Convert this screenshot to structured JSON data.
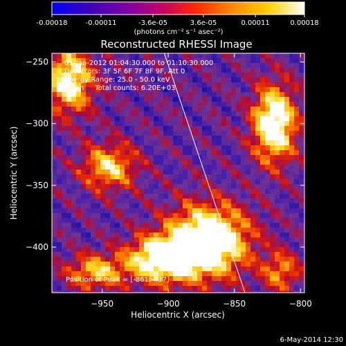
{
  "colorbar": {
    "tick_labels": [
      "-0.00018",
      "-0.00011",
      "-3.6e-05",
      "3.6e-05",
      "0.00011",
      "0.00018"
    ],
    "tick_values": [
      -0.00018,
      -0.00011,
      -3.6e-05,
      3.6e-05,
      0.00011,
      0.00018
    ],
    "range": [
      -0.00018,
      0.00018
    ],
    "units_label": "(photons cm⁻² s⁻¹ asec⁻²)",
    "gradient_colors": [
      "#0000ff",
      "#3a00b8",
      "#7a00a8",
      "#c0006a",
      "#ff2a00",
      "#ff8a00",
      "#ffd000",
      "#ffffff"
    ]
  },
  "chart_data": {
    "type": "heatmap",
    "title": "Reconstructed RHESSI Image",
    "xlabel": "Heliocentric X (arcsec)",
    "ylabel": "Heliocentric Y (arcsec)",
    "xlim": [
      -988,
      -797
    ],
    "ylim": [
      -437,
      -243
    ],
    "x_ticks": [
      -950,
      -900,
      -850,
      -800
    ],
    "x_tick_labels": [
      "−950",
      "−900",
      "−850",
      "−800"
    ],
    "y_ticks": [
      -250,
      -300,
      -350,
      -400
    ],
    "y_tick_labels": [
      "−250",
      "−300",
      "−350",
      "−400"
    ],
    "info_lines": [
      "01-Jan-2012 01:04:30.000 to 01:10:30.000",
      "Detectors: 3F 5F 6F 7F 8F 9F, Att 0",
      "Energy Range: 25.0 - 50.0 keV",
      "Clean     Total counts: 6.20E+03"
    ],
    "peak_label": "Position of Peak = [-861,-437]",
    "peak_position": [
      -861,
      -437
    ],
    "limb_line": [
      [
        -903,
        -243
      ],
      [
        -842,
        -437
      ]
    ],
    "bright_regions": [
      {
        "x": -870,
        "y": -395,
        "sx": 30,
        "sy": 28,
        "amp": 1.0
      },
      {
        "x": -905,
        "y": -410,
        "sx": 26,
        "sy": 18,
        "amp": 0.85
      },
      {
        "x": -820,
        "y": -300,
        "sx": 16,
        "sy": 30,
        "amp": 0.9
      },
      {
        "x": -975,
        "y": -265,
        "sx": 18,
        "sy": 26,
        "amp": 0.75
      },
      {
        "x": -945,
        "y": -335,
        "sx": 20,
        "sy": 18,
        "amp": 0.6
      },
      {
        "x": -955,
        "y": -420,
        "sx": 22,
        "sy": 14,
        "amp": 0.55
      },
      {
        "x": -815,
        "y": -420,
        "sx": 14,
        "sy": 16,
        "amp": 0.45
      }
    ]
  },
  "footer": {
    "date": "6-May-2014 12:30"
  }
}
